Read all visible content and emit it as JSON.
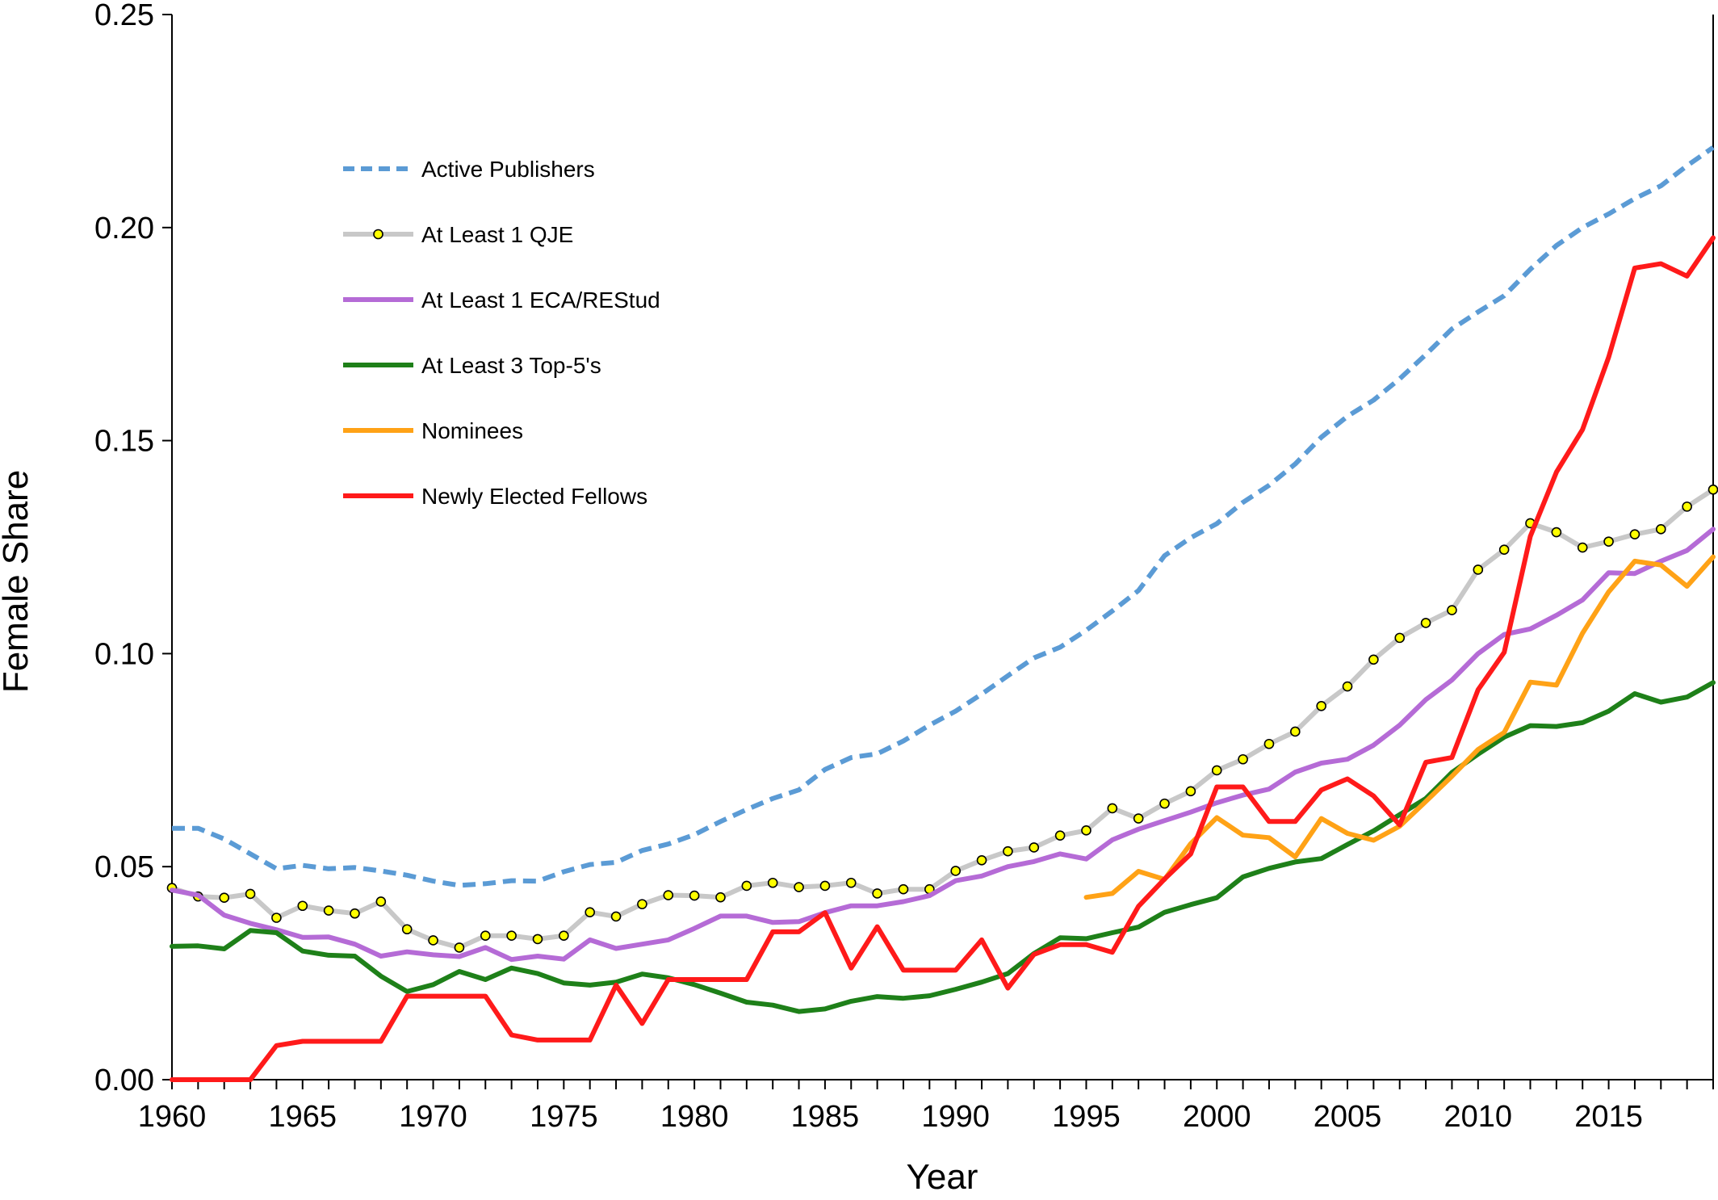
{
  "chart_data": {
    "type": "line",
    "title": "",
    "xlabel": "Year",
    "ylabel": "Female Share",
    "xlim": [
      1960,
      2019
    ],
    "ylim": [
      0,
      0.25
    ],
    "x_ticks": [
      1960,
      1965,
      1970,
      1975,
      1980,
      1985,
      1990,
      1995,
      2000,
      2005,
      2010,
      2015
    ],
    "y_ticks": [
      "0.00",
      "0.05",
      "0.10",
      "0.15",
      "0.20",
      "0.25"
    ],
    "grid": false,
    "legend_position": "upper-left inside plot",
    "series": [
      {
        "name": "Active Publishers",
        "color": "#5B9BD5",
        "style": "dashed",
        "x": [
          1960,
          1961,
          1962,
          1963,
          1964,
          1965,
          1966,
          1967,
          1968,
          1969,
          1970,
          1971,
          1972,
          1973,
          1974,
          1975,
          1976,
          1977,
          1978,
          1979,
          1980,
          1981,
          1982,
          1983,
          1984,
          1985,
          1986,
          1987,
          1988,
          1989,
          1990,
          1991,
          1992,
          1993,
          1994,
          1995,
          1996,
          1997,
          1998,
          1999,
          2000,
          2001,
          2002,
          2003,
          2004,
          2005,
          2006,
          2007,
          2008,
          2009,
          2010,
          2011,
          2012,
          2013,
          2014,
          2015,
          2016,
          2017,
          2018,
          2019
        ],
        "values": [
          0.059,
          0.059,
          0.0565,
          0.053,
          0.0495,
          0.0503,
          0.0495,
          0.0498,
          0.049,
          0.048,
          0.0466,
          0.0456,
          0.046,
          0.0467,
          0.0466,
          0.0488,
          0.0505,
          0.051,
          0.0538,
          0.0553,
          0.0575,
          0.0606,
          0.0634,
          0.066,
          0.068,
          0.0728,
          0.0756,
          0.0765,
          0.0795,
          0.0832,
          0.0865,
          0.0905,
          0.0948,
          0.099,
          0.1015,
          0.1055,
          0.11,
          0.1148,
          0.123,
          0.1272,
          0.1305,
          0.1355,
          0.1395,
          0.1445,
          0.1508,
          0.1557,
          0.1595,
          0.1645,
          0.1702,
          0.1762,
          0.1802,
          0.184,
          0.1902,
          0.1958,
          0.2,
          0.2032,
          0.2068,
          0.2098,
          0.2145,
          0.2188
        ]
      },
      {
        "name": "At Least 1 QJE",
        "color": "#C8C8C8",
        "marker_color": "#FFFF00",
        "style": "solid-with-markers",
        "x": [
          1960,
          1961,
          1962,
          1963,
          1964,
          1965,
          1966,
          1967,
          1968,
          1969,
          1970,
          1971,
          1972,
          1973,
          1974,
          1975,
          1976,
          1977,
          1978,
          1979,
          1980,
          1981,
          1982,
          1983,
          1984,
          1985,
          1986,
          1987,
          1988,
          1989,
          1990,
          1991,
          1992,
          1993,
          1994,
          1995,
          1996,
          1997,
          1998,
          1999,
          2000,
          2001,
          2002,
          2003,
          2004,
          2005,
          2006,
          2007,
          2008,
          2009,
          2010,
          2011,
          2012,
          2013,
          2014,
          2015,
          2016,
          2017,
          2018,
          2019
        ],
        "values": [
          0.045,
          0.043,
          0.0427,
          0.0436,
          0.038,
          0.0408,
          0.0397,
          0.039,
          0.0418,
          0.0353,
          0.0327,
          0.031,
          0.0338,
          0.0338,
          0.033,
          0.0338,
          0.0393,
          0.0383,
          0.0412,
          0.0433,
          0.0432,
          0.0428,
          0.0455,
          0.0462,
          0.0452,
          0.0455,
          0.0462,
          0.0437,
          0.0447,
          0.0447,
          0.049,
          0.0515,
          0.0536,
          0.0545,
          0.0573,
          0.0585,
          0.0637,
          0.0613,
          0.0648,
          0.0677,
          0.0726,
          0.0752,
          0.0788,
          0.0817,
          0.0877,
          0.0923,
          0.0986,
          0.1037,
          0.1072,
          0.1102,
          0.1197,
          0.1244,
          0.1306,
          0.1285,
          0.1249,
          0.1263,
          0.128,
          0.1292,
          0.1345,
          0.1385
        ]
      },
      {
        "name": "At Least 1 ECA/REStud",
        "color": "#B56BD6",
        "style": "solid",
        "x": [
          1960,
          1961,
          1962,
          1963,
          1964,
          1965,
          1966,
          1967,
          1968,
          1969,
          1970,
          1971,
          1972,
          1973,
          1974,
          1975,
          1976,
          1977,
          1978,
          1979,
          1980,
          1981,
          1982,
          1983,
          1984,
          1985,
          1986,
          1987,
          1988,
          1989,
          1990,
          1991,
          1992,
          1993,
          1994,
          1995,
          1996,
          1997,
          1998,
          1999,
          2000,
          2001,
          2002,
          2003,
          2004,
          2005,
          2006,
          2007,
          2008,
          2009,
          2010,
          2011,
          2012,
          2013,
          2014,
          2015,
          2016,
          2017,
          2018,
          2019
        ],
        "values": [
          0.0445,
          0.0433,
          0.0386,
          0.0367,
          0.0352,
          0.0334,
          0.0335,
          0.0318,
          0.029,
          0.03,
          0.0293,
          0.0289,
          0.031,
          0.0282,
          0.029,
          0.0283,
          0.0328,
          0.0308,
          0.0318,
          0.0328,
          0.0355,
          0.0384,
          0.0384,
          0.0369,
          0.0371,
          0.0392,
          0.0408,
          0.0408,
          0.0418,
          0.0432,
          0.0467,
          0.0478,
          0.05,
          0.0512,
          0.053,
          0.0518,
          0.0563,
          0.0588,
          0.0608,
          0.0628,
          0.065,
          0.0668,
          0.0682,
          0.0722,
          0.0743,
          0.0752,
          0.0785,
          0.0832,
          0.0892,
          0.0938,
          0.1,
          0.1045,
          0.1058,
          0.109,
          0.1126,
          0.119,
          0.1188,
          0.1217,
          0.1242,
          0.1292
        ]
      },
      {
        "name": "At Least 3 Top-5's",
        "color": "#1E8019",
        "style": "solid",
        "x": [
          1960,
          1961,
          1962,
          1963,
          1964,
          1965,
          1966,
          1967,
          1968,
          1969,
          1970,
          1971,
          1972,
          1973,
          1974,
          1975,
          1976,
          1977,
          1978,
          1979,
          1980,
          1981,
          1982,
          1983,
          1984,
          1985,
          1986,
          1987,
          1988,
          1989,
          1990,
          1991,
          1992,
          1993,
          1994,
          1995,
          1996,
          1997,
          1998,
          1999,
          2000,
          2001,
          2002,
          2003,
          2004,
          2005,
          2006,
          2007,
          2008,
          2009,
          2010,
          2011,
          2012,
          2013,
          2014,
          2015,
          2016,
          2017,
          2018,
          2019
        ],
        "values": [
          0.0313,
          0.0314,
          0.0307,
          0.035,
          0.0345,
          0.0302,
          0.0292,
          0.029,
          0.0243,
          0.0207,
          0.0223,
          0.0254,
          0.0235,
          0.0262,
          0.0249,
          0.0227,
          0.0222,
          0.0229,
          0.0248,
          0.0239,
          0.0223,
          0.0203,
          0.0182,
          0.0175,
          0.016,
          0.0166,
          0.0184,
          0.0195,
          0.0191,
          0.0197,
          0.0212,
          0.0229,
          0.0249,
          0.0296,
          0.0333,
          0.0331,
          0.0345,
          0.0358,
          0.0393,
          0.0411,
          0.0427,
          0.0476,
          0.0496,
          0.0511,
          0.0519,
          0.0552,
          0.0584,
          0.0622,
          0.066,
          0.0721,
          0.0764,
          0.0804,
          0.0831,
          0.0829,
          0.0838,
          0.0865,
          0.0906,
          0.0886,
          0.0898,
          0.0932
        ]
      },
      {
        "name": "Nominees",
        "color": "#FFA216",
        "style": "solid",
        "x": [
          1995,
          1996,
          1997,
          1998,
          1999,
          2000,
          2001,
          2002,
          2003,
          2004,
          2005,
          2006,
          2007,
          2008,
          2009,
          2010,
          2011,
          2012,
          2013,
          2014,
          2015,
          2016,
          2017,
          2018,
          2019
        ],
        "values": [
          0.0428,
          0.0437,
          0.0489,
          0.047,
          0.0554,
          0.0615,
          0.0574,
          0.0568,
          0.0523,
          0.0613,
          0.0578,
          0.0562,
          0.0595,
          0.0653,
          0.0712,
          0.0775,
          0.0815,
          0.0933,
          0.0926,
          0.1048,
          0.1145,
          0.1217,
          0.1208,
          0.1158,
          0.1227
        ]
      },
      {
        "name": "Newly Elected Fellows",
        "color": "#FF1A1A",
        "style": "solid",
        "x": [
          1960,
          1961,
          1962,
          1963,
          1964,
          1965,
          1966,
          1967,
          1968,
          1969,
          1970,
          1971,
          1972,
          1973,
          1974,
          1975,
          1976,
          1977,
          1978,
          1979,
          1980,
          1981,
          1982,
          1983,
          1984,
          1985,
          1986,
          1987,
          1988,
          1989,
          1990,
          1991,
          1992,
          1993,
          1994,
          1995,
          1996,
          1997,
          1998,
          1999,
          2000,
          2001,
          2002,
          2003,
          2004,
          2005,
          2006,
          2007,
          2008,
          2009,
          2010,
          2011,
          2012,
          2013,
          2014,
          2015,
          2016,
          2017,
          2018,
          2019
        ],
        "values": [
          0,
          0,
          0,
          0,
          0.008,
          0.009,
          0.009,
          0.009,
          0.009,
          0.0196,
          0.0196,
          0.0196,
          0.0196,
          0.0105,
          0.0093,
          0.0093,
          0.0093,
          0.0222,
          0.0132,
          0.0235,
          0.0235,
          0.0235,
          0.0235,
          0.0347,
          0.0347,
          0.0392,
          0.0262,
          0.0359,
          0.0257,
          0.0257,
          0.0257,
          0.0328,
          0.0215,
          0.0294,
          0.0317,
          0.0317,
          0.0299,
          0.0407,
          0.0471,
          0.053,
          0.0687,
          0.0687,
          0.0606,
          0.0606,
          0.068,
          0.0706,
          0.0666,
          0.0598,
          0.0745,
          0.0756,
          0.0915,
          0.1003,
          0.1275,
          0.1426,
          0.1526,
          0.1696,
          0.1905,
          0.1915,
          0.1886,
          0.1976
        ]
      }
    ]
  }
}
